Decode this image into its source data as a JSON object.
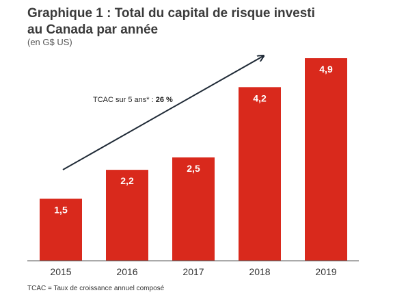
{
  "chart_data": {
    "type": "bar",
    "title_line1": "Graphique 1 : Total du capital de risque investi",
    "title_line2": "au Canada par année",
    "subtitle": "(en G$ US)",
    "categories": [
      "2015",
      "2016",
      "2017",
      "2018",
      "2019"
    ],
    "values": [
      1.5,
      2.2,
      2.5,
      4.2,
      4.9
    ],
    "value_labels": [
      "1,5",
      "2,2",
      "2,5",
      "4,2",
      "4,9"
    ],
    "ylim": [
      0,
      5.2
    ],
    "grid": false,
    "bar_color": "#d9291c",
    "annotation": {
      "prefix": "TCAC sur 5 ans* : ",
      "value": "26 %"
    },
    "footnote": "TCAC = Taux de croissance annuel composé"
  }
}
